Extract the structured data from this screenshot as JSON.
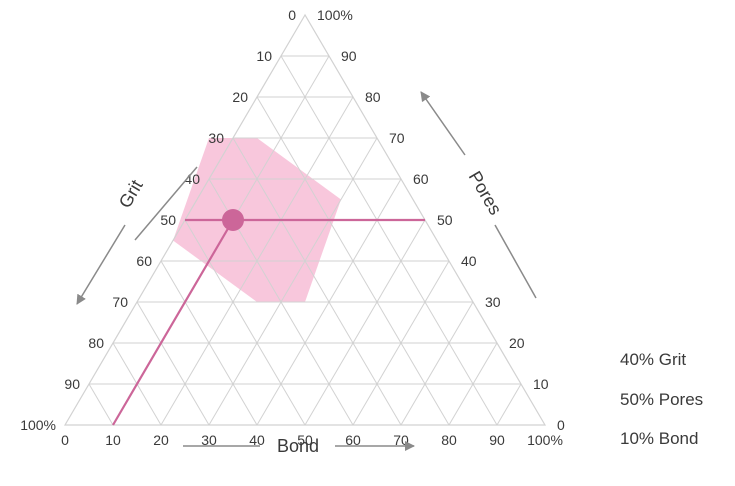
{
  "chart_data": {
    "type": "ternary",
    "axes": {
      "left": {
        "label": "Grit",
        "ticks": [
          "0",
          "10",
          "20",
          "30",
          "40",
          "50",
          "60",
          "70",
          "80",
          "90",
          "100%"
        ]
      },
      "right": {
        "label": "Pores",
        "ticks": [
          "100%",
          "90",
          "80",
          "70",
          "60",
          "50",
          "40",
          "30",
          "20",
          "10",
          "0"
        ]
      },
      "bottom": {
        "label": "Bond",
        "ticks": [
          "0",
          "10",
          "20",
          "30",
          "40",
          "50",
          "60",
          "70",
          "80",
          "90",
          "100%"
        ]
      }
    },
    "grid_step": 10,
    "grid": true,
    "point": {
      "grit": 40,
      "pores": 50,
      "bond": 10
    },
    "region": [
      {
        "grit": 35,
        "pores": 70,
        "bond": -5
      },
      {
        "grit": 25,
        "pores": 70,
        "bond": 5
      },
      {
        "grit": 15,
        "pores": 55,
        "bond": 30
      },
      {
        "grit": 35,
        "pores": 30,
        "bond": 35
      },
      {
        "grit": 45,
        "pores": 30,
        "bond": 25
      },
      {
        "grit": 55,
        "pores": 45,
        "bond": 0
      }
    ],
    "colors": {
      "accent": "#cc6699",
      "region_fill": "#f4a9c9",
      "grid": "#d2d2d2",
      "arrow": "#8a8a8a",
      "text": "#3a3a3a"
    },
    "legend": [
      "40% Grit",
      "50% Pores",
      "10% Bond"
    ]
  }
}
